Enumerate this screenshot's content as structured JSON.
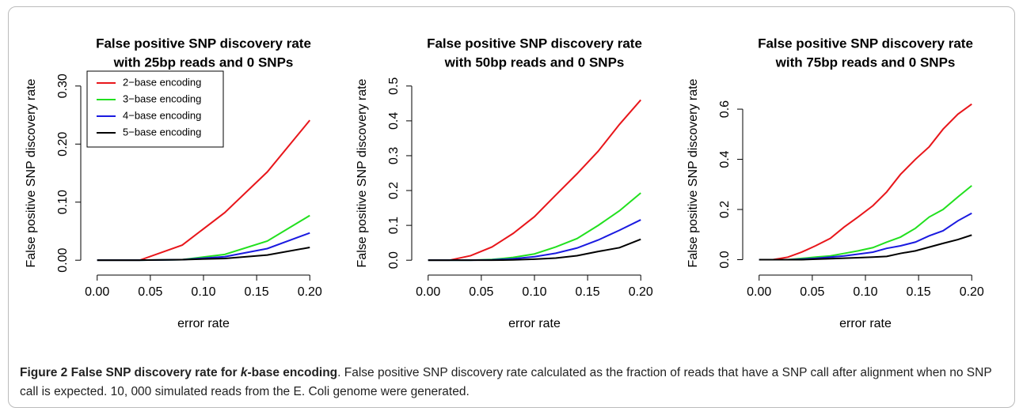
{
  "chart_data": [
    {
      "type": "line",
      "title": "False positive SNP discovery rate",
      "subtitle": "with 25bp reads and 0 SNPs",
      "x_label": "error rate",
      "y_label": "False positive SNP discovery rate",
      "x": [
        0,
        0.04,
        0.08,
        0.12,
        0.16,
        0.2
      ],
      "series": [
        {
          "name": "2−base encoding",
          "color": "#e8161b",
          "values": [
            0,
            0,
            0.026,
            0.082,
            0.152,
            0.241
          ]
        },
        {
          "name": "3−base encoding",
          "color": "#22e01f",
          "values": [
            0,
            0,
            0.001,
            0.01,
            0.033,
            0.077
          ]
        },
        {
          "name": "4−base encoding",
          "color": "#1a1ae0",
          "values": [
            0,
            0,
            0.001,
            0.006,
            0.02,
            0.047
          ]
        },
        {
          "name": "5−base encoding",
          "color": "#000000",
          "values": [
            0,
            0,
            0.001,
            0.003,
            0.009,
            0.022
          ]
        }
      ],
      "xlim": [
        -0.008,
        0.208
      ],
      "ylim": [
        -0.012,
        0.312
      ],
      "xticks": [
        {
          "value": 0,
          "label": "0.00"
        },
        {
          "value": 0.05,
          "label": "0.05"
        },
        {
          "value": 0.1,
          "label": "0.10"
        },
        {
          "value": 0.15,
          "label": "0.15"
        },
        {
          "value": 0.2,
          "label": "0.20"
        }
      ],
      "yticks": [
        {
          "value": 0,
          "label": "0.00"
        },
        {
          "value": 0.1,
          "label": "0.10"
        },
        {
          "value": 0.2,
          "label": "0.20"
        },
        {
          "value": 0.3,
          "label": "0.30"
        }
      ],
      "legend": "top-left"
    },
    {
      "type": "line",
      "title": "False positive SNP discovery rate",
      "subtitle": "with 50bp reads and 0 SNPs",
      "x_label": "error rate",
      "y_label": "False positive SNP discovery rate",
      "x": [
        0,
        0.02,
        0.04,
        0.06,
        0.08,
        0.1,
        0.12,
        0.14,
        0.16,
        0.18,
        0.2
      ],
      "series": [
        {
          "color": "#e8161b",
          "values": [
            0,
            0,
            0.013,
            0.038,
            0.077,
            0.125,
            0.187,
            0.248,
            0.313,
            0.39,
            0.46
          ]
        },
        {
          "color": "#22e01f",
          "values": [
            0,
            0,
            0,
            0.002,
            0.008,
            0.018,
            0.038,
            0.062,
            0.1,
            0.142,
            0.193
          ]
        },
        {
          "color": "#1a1ae0",
          "values": [
            0,
            0,
            0,
            0.001,
            0.004,
            0.01,
            0.02,
            0.035,
            0.058,
            0.086,
            0.116
          ]
        },
        {
          "color": "#000000",
          "values": [
            0,
            0,
            0,
            0,
            0.001,
            0.003,
            0.006,
            0.013,
            0.025,
            0.036,
            0.06
          ]
        }
      ],
      "xlim": [
        -0.008,
        0.208
      ],
      "ylim": [
        -0.02,
        0.52
      ],
      "xticks": [
        {
          "value": 0,
          "label": "0.00"
        },
        {
          "value": 0.05,
          "label": "0.05"
        },
        {
          "value": 0.1,
          "label": "0.10"
        },
        {
          "value": 0.15,
          "label": "0.15"
        },
        {
          "value": 0.2,
          "label": "0.20"
        }
      ],
      "yticks": [
        {
          "value": 0,
          "label": "0.0"
        },
        0.1,
        0.2,
        0.3,
        0.4,
        0.5
      ]
    },
    {
      "type": "line",
      "title": "False positive SNP discovery rate",
      "subtitle": "with 75bp reads and 0 SNPs",
      "x_label": "error rate",
      "y_label": "False positive SNP discovery rate",
      "x": [
        0,
        0.013,
        0.027,
        0.04,
        0.053,
        0.067,
        0.08,
        0.093,
        0.107,
        0.12,
        0.133,
        0.147,
        0.16,
        0.173,
        0.187,
        0.2
      ],
      "series": [
        {
          "color": "#e8161b",
          "values": [
            0,
            0,
            0.01,
            0.03,
            0.055,
            0.085,
            0.13,
            0.17,
            0.215,
            0.27,
            0.34,
            0.4,
            0.45,
            0.52,
            0.58,
            0.62
          ]
        },
        {
          "color": "#22e01f",
          "values": [
            0,
            0,
            0,
            0.005,
            0.01,
            0.015,
            0.025,
            0.035,
            0.048,
            0.07,
            0.09,
            0.125,
            0.17,
            0.2,
            0.25,
            0.295
          ]
        },
        {
          "color": "#1a1ae0",
          "values": [
            0,
            0,
            0,
            0.002,
            0.005,
            0.01,
            0.015,
            0.022,
            0.03,
            0.045,
            0.055,
            0.07,
            0.095,
            0.115,
            0.155,
            0.185
          ]
        },
        {
          "color": "#000000",
          "values": [
            0,
            0,
            0,
            0,
            0.002,
            0.004,
            0.006,
            0.008,
            0.01,
            0.013,
            0.025,
            0.035,
            0.05,
            0.065,
            0.08,
            0.098
          ]
        }
      ],
      "xlim": [
        -0.008,
        0.208
      ],
      "ylim": [
        -0.03,
        0.72
      ],
      "xticks": [
        {
          "value": 0,
          "label": "0.00"
        },
        {
          "value": 0.05,
          "label": "0.05"
        },
        {
          "value": 0.1,
          "label": "0.10"
        },
        {
          "value": 0.15,
          "label": "0.15"
        },
        {
          "value": 0.2,
          "label": "0.20"
        }
      ],
      "yticks": [
        {
          "value": 0,
          "label": "0.0"
        },
        0.2,
        0.4,
        0.6
      ]
    }
  ],
  "caption": {
    "label": "Figure 2",
    "title_start": "False SNP discovery rate for ",
    "title_italic": "k",
    "title_end": "-base encoding",
    "text": ". False positive SNP discovery rate calculated as the fraction of reads that have a SNP call after alignment when no SNP call is expected. 10, 000 simulated reads from the E. Coli genome were generated."
  }
}
